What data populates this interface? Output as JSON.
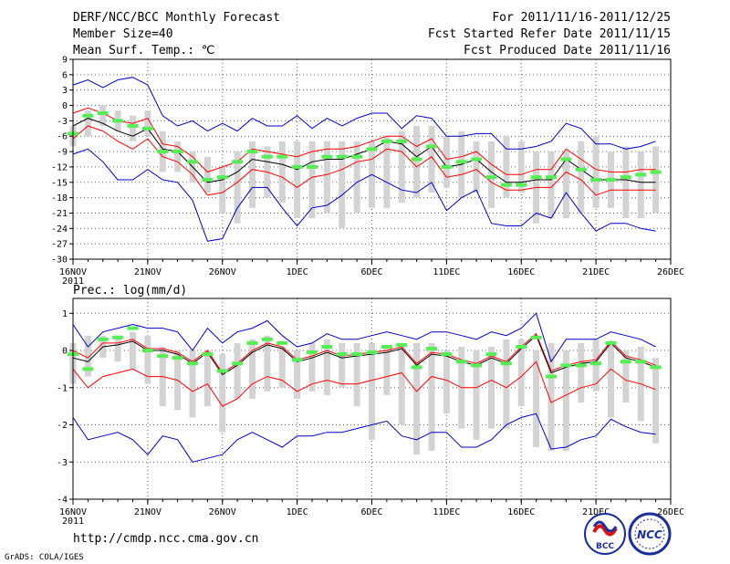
{
  "header": {
    "title": "DERF/NCC/BCC Monthly Forecast",
    "member_size": "Member Size=40",
    "variable": "Mean Surf. Temp.: ℃",
    "period": "For 2011/11/16-2011/12/25",
    "fcst_started": "Fcst Started Refer Date 2011/11/15",
    "fcst_produced": "Fcst Produced Date 2011/11/16"
  },
  "footer": {
    "url": "http://cmdp.ncc.cma.gov.cn",
    "grads": "GrADS: COLA/IGES",
    "logo_bcc": "BCC",
    "logo_ncc": "NCC"
  },
  "colors": {
    "box": "#d3d3d3",
    "mean": "#000000",
    "spread": "#ff0000",
    "extreme": "#0000cc",
    "median": "#55ee55",
    "grid": "#666666"
  },
  "chart_data": [
    {
      "type": "line",
      "title": "Mean Surf. Temp.: ℃",
      "ylim": [
        -30,
        9
      ],
      "yticks": [
        9,
        6,
        3,
        0,
        -3,
        -6,
        -9,
        -12,
        -15,
        -18,
        -21,
        -24,
        -27,
        -30
      ],
      "ytick_labels": [
        "9",
        "6",
        "3",
        "0",
        "-3",
        "-6",
        "-9",
        "-12",
        "-15",
        "-18",
        "-21",
        "-24",
        "-27",
        "-30"
      ],
      "xlim": [
        1,
        41
      ],
      "xticks": [
        1,
        6,
        11,
        16,
        21,
        26,
        31,
        36,
        41
      ],
      "xtick_labels": [
        "16NOV",
        "21NOV",
        "26NOV",
        "1DEC",
        "6DEC",
        "11DEC",
        "16DEC",
        "21DEC",
        "26DEC"
      ],
      "xtick_year": "2011",
      "grid": true,
      "days": [
        1,
        2,
        3,
        4,
        5,
        6,
        7,
        8,
        9,
        10,
        11,
        12,
        13,
        14,
        15,
        16,
        17,
        18,
        19,
        20,
        21,
        22,
        23,
        24,
        25,
        26,
        27,
        28,
        29,
        30,
        31,
        32,
        33,
        34,
        35,
        36,
        37,
        38,
        39,
        40
      ],
      "box_low": [
        -8,
        -6,
        -4,
        -5,
        -7,
        -6,
        -13,
        -13,
        -15,
        -17,
        -21,
        -23,
        -20,
        -18,
        -19,
        -22,
        -22,
        -21,
        -24,
        -21,
        -20,
        -20,
        -19,
        -18,
        -17,
        -16,
        -18,
        -17,
        -20,
        -18,
        -17,
        -23,
        -22,
        -22,
        -21,
        -20,
        -20,
        -22,
        -22,
        -21
      ],
      "box_high": [
        -4,
        -1,
        0,
        -1,
        -2,
        -1,
        -5,
        -7,
        -9,
        -10,
        -12,
        -9,
        -7,
        -8,
        -7,
        -7,
        -7,
        -7,
        -7,
        -7,
        -7,
        -6,
        -5,
        -4,
        -4,
        -6,
        -5,
        -7,
        -7,
        -6,
        -7,
        -9,
        -9,
        -9,
        -7,
        -6,
        -9,
        -8,
        -9,
        -8
      ],
      "median": [
        -5.5,
        -2,
        -1.5,
        -3,
        -4,
        -4.5,
        -9,
        -9,
        -11,
        -14.5,
        -14,
        -11,
        -9,
        -10,
        -10,
        -12,
        -12,
        -10,
        -10,
        -10,
        -8.5,
        -7,
        -7,
        -10.5,
        -8,
        -12,
        -11,
        -10.5,
        -14,
        -15.5,
        -15.5,
        -14,
        -14,
        -10.5,
        -12.5,
        -14.5,
        -14.5,
        -14,
        -13.5,
        -13
      ],
      "series": [
        {
          "name": "ensemble mean",
          "color": "#000000",
          "values": [
            -4,
            -2.5,
            -3.5,
            -5,
            -6,
            -4.5,
            -8.5,
            -9,
            -12,
            -15,
            -14.5,
            -13,
            -10.5,
            -11,
            -11.5,
            -12.5,
            -11,
            -10.5,
            -10.5,
            -9.5,
            -8.5,
            -7,
            -7.5,
            -10,
            -8,
            -12,
            -11.5,
            -10.5,
            -13,
            -15,
            -15,
            -14.5,
            -14.5,
            -10.5,
            -12.5,
            -14.5,
            -14.5,
            -14.5,
            -15,
            -15
          ]
        },
        {
          "name": "upper spread",
          "color": "#ff0000",
          "values": [
            -1.5,
            -0.5,
            -1.5,
            -3,
            -3.5,
            -2.5,
            -7.5,
            -8,
            -10,
            -13,
            -12,
            -11,
            -8.5,
            -9,
            -9.5,
            -10,
            -9,
            -8.5,
            -8.5,
            -8,
            -7,
            -6,
            -6,
            -8,
            -6.5,
            -10.5,
            -10,
            -9,
            -11.5,
            -13.5,
            -13.5,
            -12.5,
            -12.5,
            -8.5,
            -10.5,
            -12.5,
            -13,
            -13,
            -12.5,
            -12.5
          ]
        },
        {
          "name": "lower spread",
          "color": "#ff0000",
          "values": [
            -6.5,
            -4,
            -5,
            -7,
            -8.5,
            -6.5,
            -10,
            -11,
            -13.5,
            -17.5,
            -17,
            -15,
            -12.5,
            -13,
            -14,
            -16,
            -14,
            -13.5,
            -12.5,
            -11,
            -10.5,
            -8.5,
            -9,
            -12,
            -10,
            -14,
            -13.5,
            -12.5,
            -15,
            -16.5,
            -16.5,
            -16,
            -16,
            -13,
            -14.5,
            -17.5,
            -16.5,
            -16.5,
            -16.5,
            -16.5
          ]
        },
        {
          "name": "max",
          "color": "#0000cc",
          "values": [
            4,
            5,
            3.5,
            5,
            5.5,
            4,
            -2,
            -4,
            -3,
            -5,
            -3.5,
            -5,
            -2.5,
            -4,
            -4,
            -2,
            -4.5,
            -2.5,
            -4,
            -2.5,
            -1.5,
            -1.5,
            -4.5,
            -2,
            -2.5,
            -6,
            -6,
            -5.5,
            -5.5,
            -8.5,
            -8.5,
            -8,
            -7,
            -3.5,
            -4.5,
            -7.5,
            -7.5,
            -8.5,
            -8,
            -7
          ]
        },
        {
          "name": "min",
          "color": "#0000cc",
          "values": [
            -9.5,
            -8.5,
            -11,
            -14.5,
            -14.5,
            -12.5,
            -14.5,
            -15,
            -18.5,
            -26.5,
            -26,
            -20,
            -16,
            -16,
            -20,
            -23.5,
            -20,
            -19.5,
            -17.5,
            -15,
            -13.5,
            -15,
            -16.5,
            -17,
            -15,
            -20.5,
            -18,
            -16.5,
            -23,
            -23.5,
            -23.5,
            -21,
            -22,
            -17,
            -21,
            -24.5,
            -23,
            -23,
            -24,
            -24.5
          ]
        }
      ]
    },
    {
      "type": "line",
      "title": "Prec.: log(mm/d)",
      "ylim": [
        -4,
        1.4
      ],
      "yticks": [
        1,
        0,
        -1,
        -2,
        -3,
        -4
      ],
      "ytick_labels": [
        "1",
        "0",
        "-1",
        "-2",
        "-3",
        "-4"
      ],
      "xlim": [
        1,
        41
      ],
      "xticks": [
        1,
        6,
        11,
        16,
        21,
        26,
        31,
        36,
        41
      ],
      "xtick_labels": [
        "16NOV",
        "21NOV",
        "26NOV",
        "1DEC",
        "6DEC",
        "11DEC",
        "16DEC",
        "21DEC",
        "26DEC"
      ],
      "xtick_year": "2011",
      "grid": true,
      "days": [
        1,
        2,
        3,
        4,
        5,
        6,
        7,
        8,
        9,
        10,
        11,
        12,
        13,
        14,
        15,
        16,
        17,
        18,
        19,
        20,
        21,
        22,
        23,
        24,
        25,
        26,
        27,
        28,
        29,
        30,
        31,
        32,
        33,
        34,
        35,
        36,
        37,
        38,
        39,
        40
      ],
      "box_low": [
        -0.9,
        -0.7,
        -0.2,
        -0.3,
        -0.5,
        -0.9,
        -1.5,
        -1.6,
        -1.8,
        -1.5,
        -2.2,
        -1.3,
        -1.3,
        -1.1,
        -1.0,
        -1.3,
        -1.1,
        -1.2,
        -1.0,
        -1.5,
        -2.4,
        -1.2,
        -2.0,
        -2.8,
        -2.7,
        -1.7,
        -2.1,
        -2.4,
        -2.1,
        -2.1,
        -1.5,
        -2.6,
        -2.7,
        -2.7,
        -1.4,
        -1.1,
        -1.8,
        -1.4,
        -1.9,
        -2.5
      ],
      "box_high": [
        0.2,
        0.4,
        0.4,
        0.4,
        0.5,
        0.4,
        0.1,
        0.0,
        0.0,
        0.0,
        -0.1,
        0.2,
        0.3,
        0.4,
        0.1,
        0.0,
        0.2,
        0.3,
        0.2,
        0.2,
        0.2,
        0.1,
        0.2,
        0.2,
        0.2,
        0.0,
        0.1,
        0.0,
        0.1,
        0.3,
        0.3,
        0.0,
        0.2,
        0.0,
        0.2,
        0.3,
        0.2,
        0.0,
        0.1,
        -0.2
      ],
      "median": [
        -0.1,
        -0.5,
        0.3,
        0.35,
        0.6,
        0.0,
        -0.15,
        -0.2,
        -0.35,
        -0.1,
        -0.55,
        -0.35,
        0.2,
        0.3,
        0.2,
        -0.25,
        -0.05,
        0.1,
        -0.1,
        -0.1,
        -0.05,
        0.1,
        0.15,
        -0.45,
        0.05,
        -0.1,
        -0.3,
        -0.4,
        -0.1,
        -0.35,
        0.1,
        0.35,
        -0.7,
        -0.4,
        -0.4,
        -0.35,
        0.2,
        -0.3,
        -0.3,
        -0.45
      ],
      "series": [
        {
          "name": "ensemble mean",
          "color": "#000000",
          "values": [
            -0.2,
            -0.3,
            0.1,
            0.15,
            0.25,
            0.0,
            0.0,
            -0.1,
            -0.35,
            -0.05,
            -0.65,
            -0.4,
            -0.05,
            0.15,
            0.05,
            -0.3,
            -0.2,
            -0.05,
            -0.2,
            -0.15,
            -0.1,
            -0.05,
            0.05,
            -0.4,
            -0.1,
            -0.15,
            -0.3,
            -0.4,
            -0.2,
            -0.35,
            0.05,
            0.4,
            -0.6,
            -0.45,
            -0.35,
            -0.3,
            0.2,
            -0.2,
            -0.3,
            -0.45
          ]
        },
        {
          "name": "upper spread",
          "color": "#ff0000",
          "values": [
            0.0,
            -0.2,
            0.2,
            0.2,
            0.3,
            0.05,
            0.05,
            -0.05,
            -0.3,
            0.0,
            -0.6,
            -0.35,
            0.0,
            0.2,
            0.1,
            -0.25,
            -0.15,
            0.0,
            -0.15,
            -0.1,
            -0.05,
            0.0,
            0.1,
            -0.35,
            -0.05,
            -0.1,
            -0.25,
            -0.35,
            -0.15,
            -0.3,
            0.1,
            0.45,
            -0.55,
            -0.4,
            -0.3,
            -0.25,
            0.25,
            -0.15,
            -0.25,
            -0.4
          ]
        },
        {
          "name": "lower spread",
          "color": "#ff0000",
          "values": [
            -0.5,
            -1.0,
            -0.7,
            -0.6,
            -0.5,
            -0.7,
            -0.7,
            -0.8,
            -1.1,
            -0.9,
            -1.5,
            -1.3,
            -0.9,
            -0.7,
            -0.8,
            -1.1,
            -0.9,
            -0.8,
            -0.9,
            -0.9,
            -0.8,
            -0.7,
            -0.6,
            -1.1,
            -0.7,
            -0.8,
            -1.0,
            -1.0,
            -0.8,
            -1.0,
            -0.7,
            -0.3,
            -1.4,
            -1.2,
            -1.0,
            -0.9,
            -0.5,
            -0.8,
            -0.9,
            -1.05
          ]
        },
        {
          "name": "max",
          "color": "#0000cc",
          "values": [
            0.7,
            0.1,
            0.5,
            0.6,
            0.7,
            0.6,
            0.6,
            0.5,
            0.0,
            0.6,
            0.2,
            0.5,
            0.6,
            0.8,
            0.4,
            0.1,
            0.2,
            0.45,
            0.3,
            0.3,
            0.4,
            0.5,
            0.4,
            0.3,
            0.5,
            0.5,
            0.4,
            0.3,
            0.5,
            0.4,
            0.6,
            1.0,
            -0.3,
            0.3,
            0.3,
            0.3,
            0.5,
            0.4,
            0.3,
            0.1
          ]
        },
        {
          "name": "min",
          "color": "#0000cc",
          "values": [
            -1.8,
            -2.4,
            -2.3,
            -2.2,
            -2.4,
            -2.8,
            -2.3,
            -2.4,
            -3.0,
            -2.9,
            -2.8,
            -2.4,
            -2.2,
            -2.4,
            -2.6,
            -2.3,
            -2.3,
            -2.2,
            -2.2,
            -2.1,
            -2.0,
            -1.9,
            -2.3,
            -2.4,
            -2.2,
            -2.2,
            -2.6,
            -2.6,
            -2.4,
            -2.0,
            -1.8,
            -1.7,
            -2.65,
            -2.6,
            -2.4,
            -2.3,
            -1.85,
            -2.05,
            -2.2,
            -2.25
          ]
        }
      ]
    }
  ]
}
